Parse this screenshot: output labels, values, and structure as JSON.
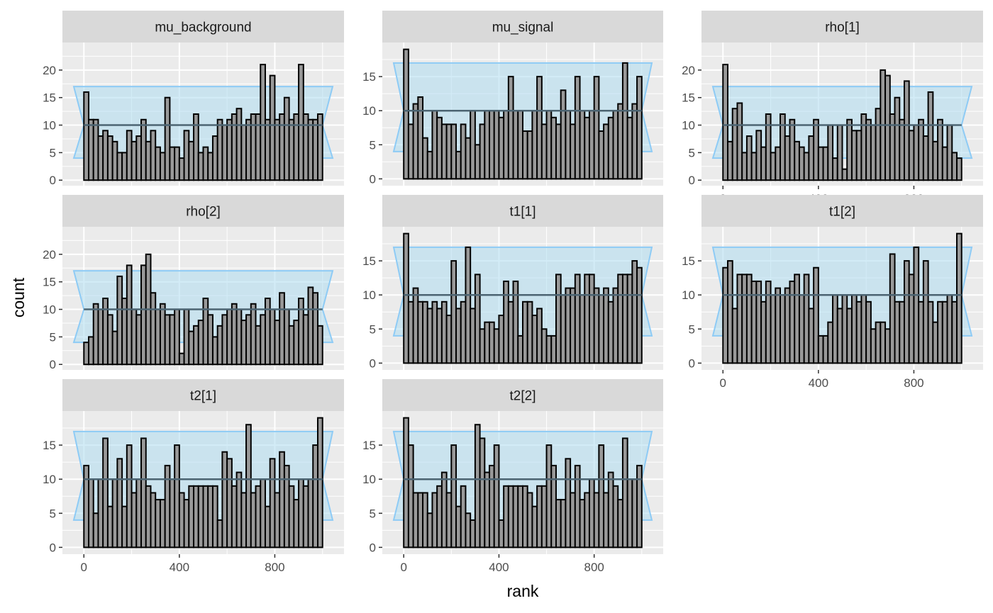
{
  "chart_data": {
    "type": "bar",
    "xlabel": "rank",
    "ylabel": "count",
    "xlim": [
      -90,
      1090
    ],
    "x_ticks": [
      0,
      400,
      800
    ],
    "x_tick_labels": [
      "0",
      "400",
      "800"
    ],
    "bins": 50,
    "bin_width": 20,
    "bin_start": 0,
    "grid": true,
    "colors": {
      "panel_bg": "#ebebeb",
      "strip_bg": "#d9d9d9",
      "grid": "#ffffff",
      "bar_fill": "#999999",
      "bar_stroke": "#000000",
      "band_fill": "#aedcf0",
      "band_stroke": "#8ecbf5",
      "expected_line": "#4c6472"
    },
    "panels": [
      {
        "title": "mu_background",
        "ylim": [
          -1,
          25
        ],
        "y_ticks": [
          0,
          5,
          10,
          15,
          20
        ],
        "band": {
          "lower": 4,
          "upper": 17,
          "expected": 10
        },
        "show_x_axis": false,
        "values": [
          16,
          11,
          11,
          8,
          9,
          8,
          7,
          5,
          5,
          9,
          7,
          8,
          11,
          7,
          9,
          6,
          5,
          15,
          6,
          6,
          4,
          9,
          7,
          12,
          5,
          6,
          5,
          8,
          11,
          10,
          11,
          12,
          13,
          10,
          11,
          12,
          12,
          21,
          11,
          19,
          11,
          12,
          15,
          11,
          12,
          21,
          12,
          11,
          11,
          12
        ]
      },
      {
        "title": "mu_signal",
        "ylim": [
          -1,
          20
        ],
        "y_ticks": [
          0,
          5,
          10,
          15
        ],
        "band": {
          "lower": 4,
          "upper": 17,
          "expected": 10
        },
        "show_x_axis": false,
        "values": [
          19,
          8,
          11,
          12,
          6,
          4,
          10,
          9,
          8,
          8,
          8,
          4,
          8,
          6,
          10,
          5,
          8,
          10,
          10,
          10,
          9,
          10,
          15,
          10,
          10,
          7,
          7,
          10,
          15,
          8,
          10,
          9,
          8,
          13,
          10,
          8,
          15,
          10,
          9,
          10,
          15,
          7,
          8,
          9,
          10,
          11,
          17,
          9,
          11,
          15
        ]
      },
      {
        "title": "rho[1]",
        "ylim": [
          -1,
          25
        ],
        "y_ticks": [
          0,
          5,
          10,
          15,
          20
        ],
        "band": {
          "lower": 4,
          "upper": 17,
          "expected": 10
        },
        "show_x_axis": true,
        "values": [
          21,
          7,
          13,
          14,
          5,
          8,
          5,
          9,
          6,
          12,
          5,
          6,
          12,
          8,
          11,
          7,
          6,
          5,
          8,
          11,
          6,
          6,
          10,
          4,
          10,
          2,
          11,
          9,
          9,
          12,
          11,
          10,
          13,
          20,
          19,
          12,
          15,
          11,
          18,
          9,
          10,
          11,
          8,
          16,
          7,
          11,
          6,
          10,
          5,
          4
        ]
      },
      {
        "title": "rho[2]",
        "ylim": [
          -1,
          25
        ],
        "y_ticks": [
          0,
          5,
          10,
          15,
          20
        ],
        "band": {
          "lower": 4,
          "upper": 17,
          "expected": 10
        },
        "show_x_axis": false,
        "values": [
          4,
          5,
          11,
          10,
          12,
          9,
          6,
          16,
          12,
          18,
          10,
          9,
          18,
          20,
          13,
          10,
          11,
          9,
          9,
          10,
          2,
          10,
          6,
          7,
          8,
          12,
          9,
          5,
          7,
          9,
          10,
          11,
          10,
          8,
          9,
          11,
          7,
          9,
          12,
          10,
          8,
          13,
          10,
          7,
          8,
          12,
          9,
          14,
          13,
          7
        ]
      },
      {
        "title": "t1[1]",
        "ylim": [
          -1,
          20
        ],
        "y_ticks": [
          0,
          5,
          10,
          15
        ],
        "band": {
          "lower": 4,
          "upper": 17,
          "expected": 10
        },
        "show_x_axis": false,
        "values": [
          19,
          9,
          11,
          9,
          9,
          8,
          9,
          8,
          9,
          7,
          15,
          8,
          9,
          17,
          8,
          13,
          5,
          6,
          6,
          5,
          7,
          12,
          9,
          12,
          4,
          9,
          9,
          7,
          8,
          5,
          4,
          4,
          13,
          10,
          11,
          11,
          13,
          10,
          13,
          13,
          11,
          10,
          11,
          9,
          11,
          13,
          13,
          13,
          15,
          14
        ]
      },
      {
        "title": "t1[2]",
        "ylim": [
          -1,
          20
        ],
        "y_ticks": [
          0,
          5,
          10,
          15
        ],
        "band": {
          "lower": 4,
          "upper": 17,
          "expected": 10
        },
        "show_x_axis": true,
        "values": [
          14,
          15,
          8,
          13,
          13,
          13,
          12,
          12,
          9,
          12,
          10,
          11,
          10,
          11,
          12,
          13,
          10,
          13,
          8,
          14,
          4,
          4,
          6,
          10,
          8,
          10,
          8,
          10,
          9,
          10,
          9,
          5,
          6,
          6,
          5,
          16,
          9,
          9,
          15,
          13,
          17,
          9,
          15,
          9,
          6,
          9,
          9,
          10,
          9,
          19
        ]
      },
      {
        "title": "t2[1]",
        "ylim": [
          -1,
          20
        ],
        "y_ticks": [
          0,
          5,
          10,
          15
        ],
        "band": {
          "lower": 4,
          "upper": 17,
          "expected": 10
        },
        "show_x_axis": true,
        "values": [
          12,
          10,
          5,
          10,
          16,
          6,
          10,
          13,
          6,
          15,
          8,
          10,
          16,
          9,
          8,
          7,
          7,
          12,
          10,
          15,
          8,
          7,
          9,
          9,
          9,
          9,
          9,
          9,
          4,
          14,
          13,
          9,
          11,
          8,
          18,
          8,
          9,
          10,
          6,
          13,
          8,
          14,
          12,
          9,
          7,
          10,
          9,
          10,
          15,
          19
        ]
      },
      {
        "title": "t2[2]",
        "ylim": [
          -1,
          20
        ],
        "y_ticks": [
          0,
          5,
          10,
          15
        ],
        "band": {
          "lower": 4,
          "upper": 17,
          "expected": 10
        },
        "show_x_axis": true,
        "values": [
          19,
          15,
          8,
          8,
          8,
          5,
          8,
          9,
          11,
          8,
          15,
          6,
          9,
          5,
          4,
          18,
          16,
          11,
          12,
          15,
          4,
          9,
          9,
          9,
          9,
          9,
          8,
          6,
          9,
          9,
          15,
          12,
          7,
          7,
          13,
          8,
          12,
          7,
          8,
          10,
          8,
          15,
          8,
          11,
          9,
          7,
          16,
          10,
          10,
          12
        ]
      }
    ]
  }
}
